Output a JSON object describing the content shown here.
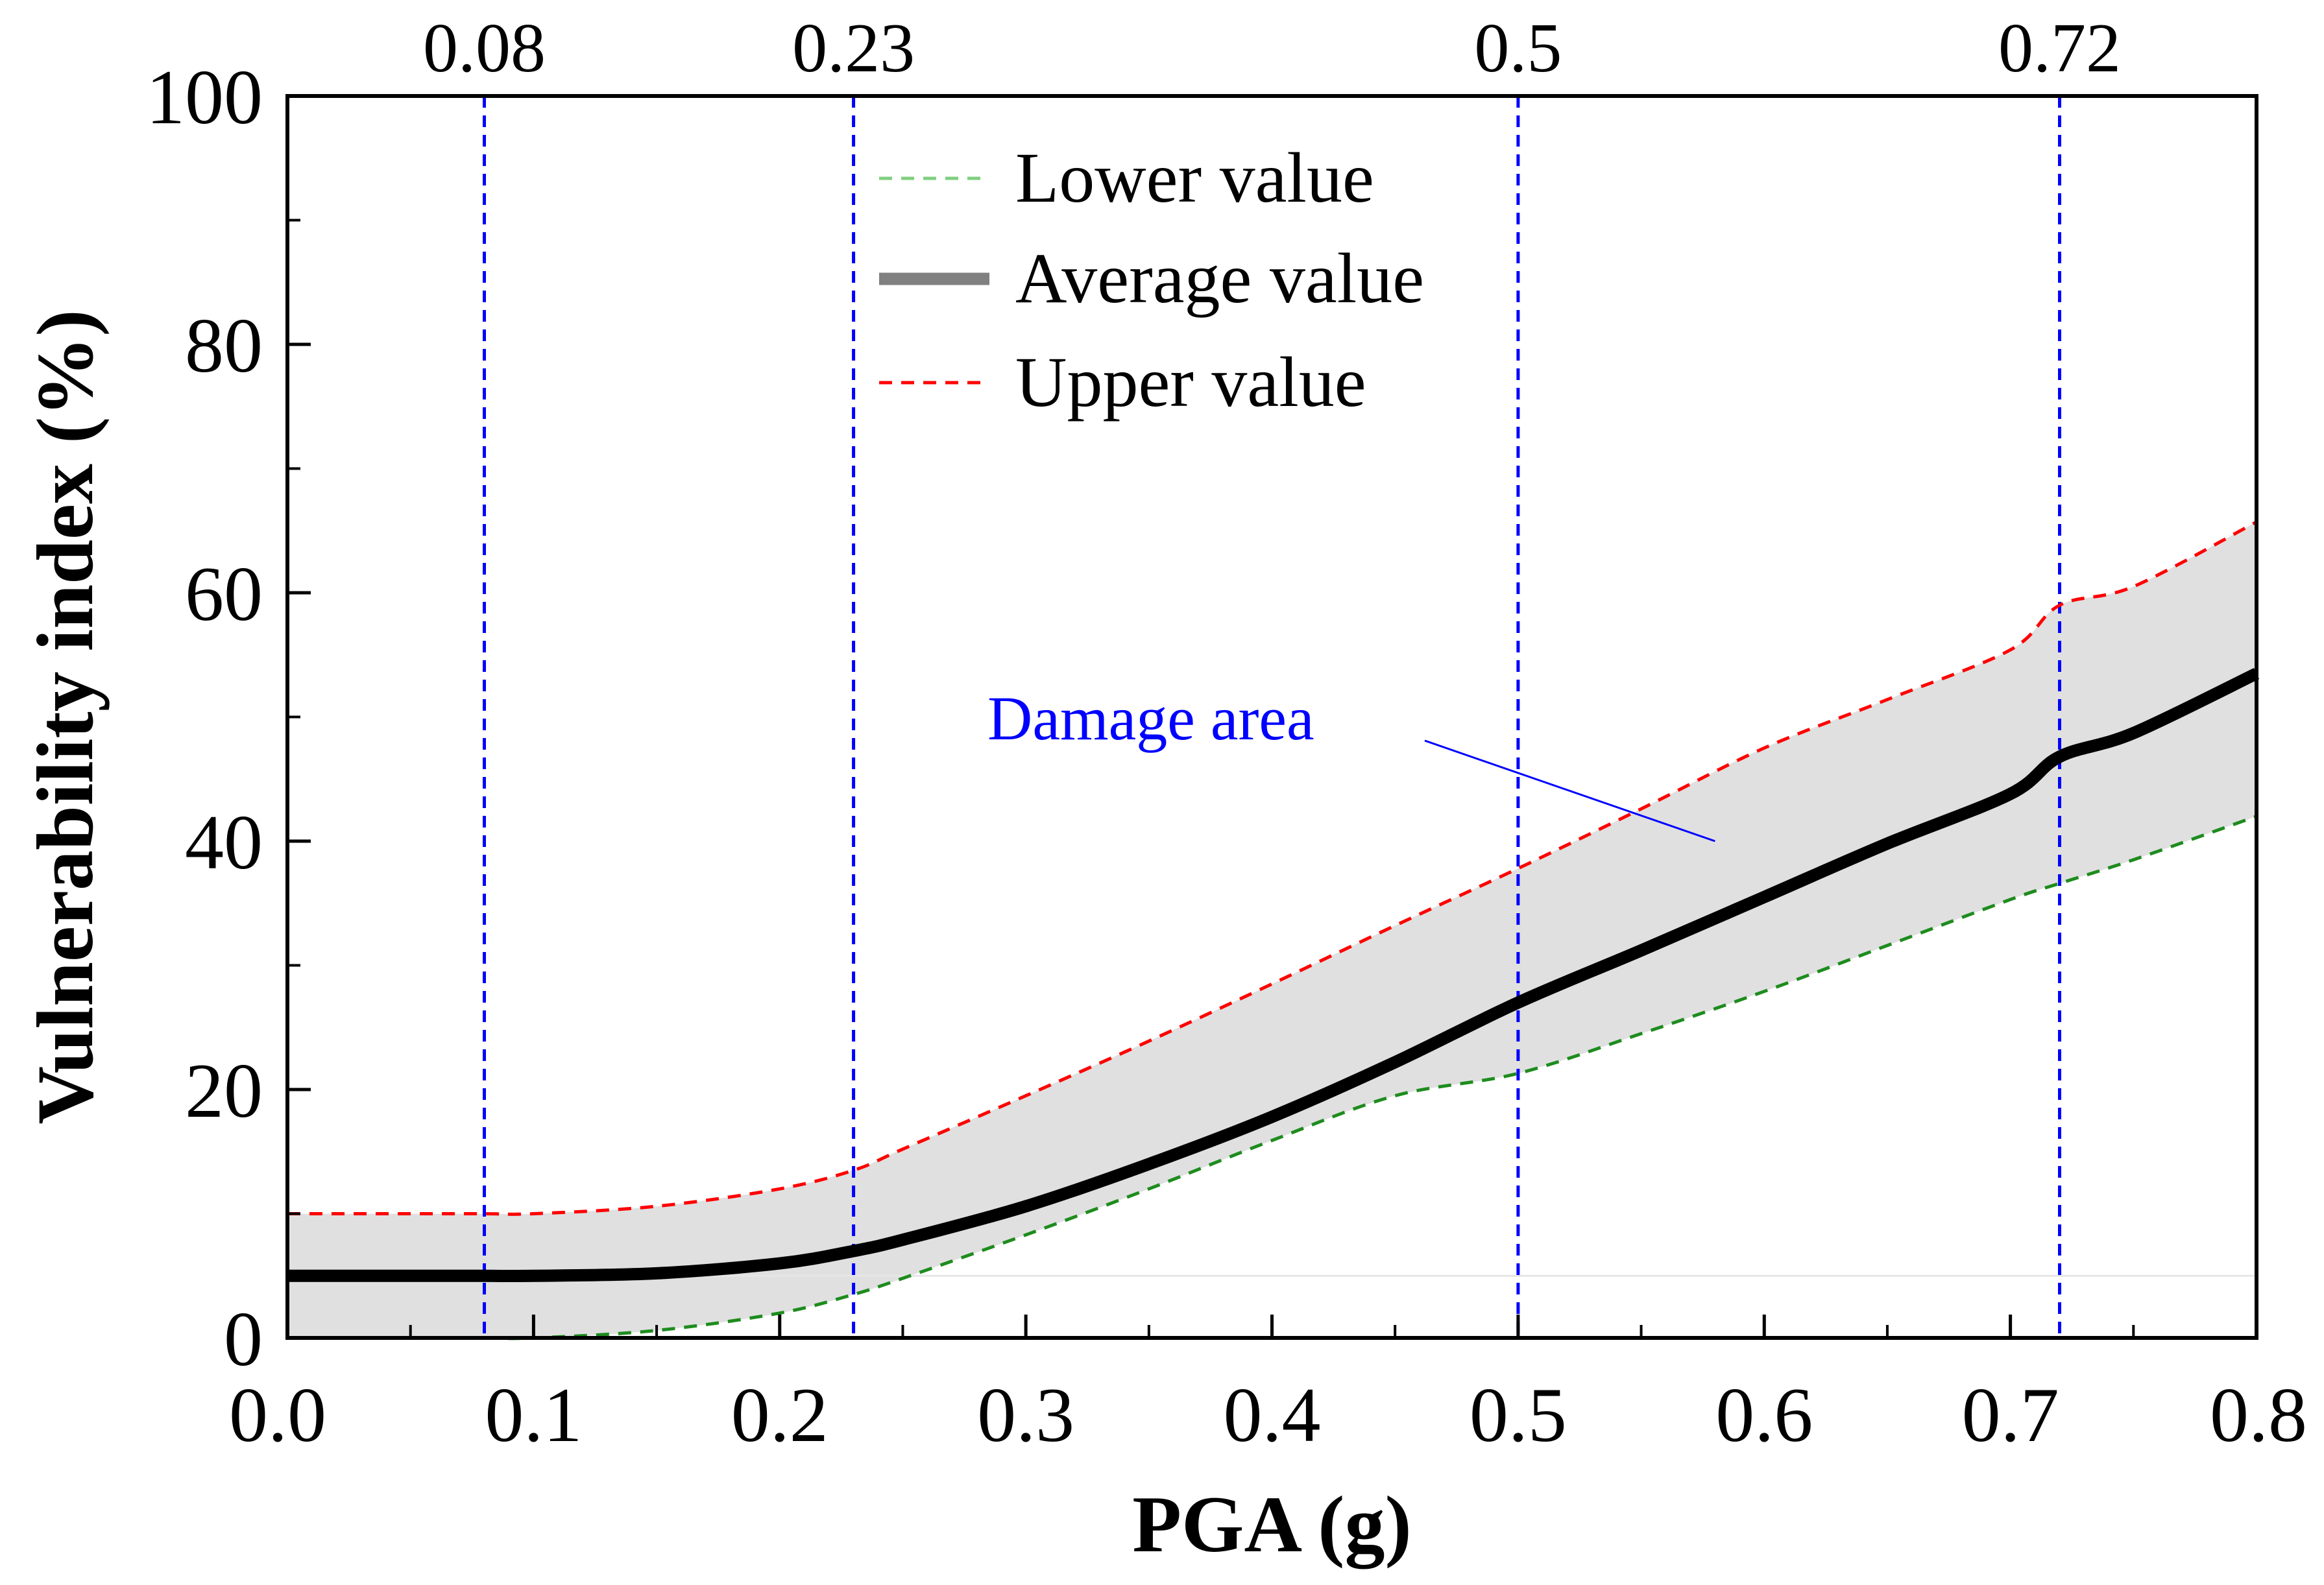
{
  "chart_data": {
    "type": "line",
    "title": "",
    "xlabel": "PGA (g)",
    "ylabel": "Vulnerability index (%)",
    "xlim": [
      0,
      0.8
    ],
    "ylim": [
      0,
      100
    ],
    "xticks": [
      "0.0",
      "0.1",
      "0.2",
      "0.3",
      "0.4",
      "0.5",
      "0.6",
      "0.7",
      "0.8"
    ],
    "yticks": [
      "0",
      "20",
      "40",
      "60",
      "80",
      "100"
    ],
    "grid": false,
    "legend_position": "top-center",
    "x": [
      0.0,
      0.05,
      0.08,
      0.1,
      0.15,
      0.2,
      0.23,
      0.25,
      0.3,
      0.35,
      0.4,
      0.45,
      0.5,
      0.55,
      0.6,
      0.65,
      0.7,
      0.72,
      0.75,
      0.8
    ],
    "series": [
      {
        "name": "Lower value",
        "style": "dashed",
        "color": "#1e8c1e",
        "legend_color": "#7fcf7f",
        "values": [
          0,
          0,
          0,
          0,
          0.6,
          2.0,
          3.5,
          4.8,
          8.3,
          12.0,
          15.9,
          19.5,
          21.3,
          24.5,
          27.9,
          31.6,
          35.3,
          36.6,
          38.5,
          42.0
        ]
      },
      {
        "name": "Average value",
        "style": "solid",
        "color": "#000000",
        "legend_color": "#808080",
        "values": [
          5.0,
          5.0,
          5.0,
          5.0,
          5.2,
          6.0,
          7.0,
          7.9,
          10.6,
          14.0,
          17.8,
          22.2,
          27.0,
          31.2,
          35.5,
          39.8,
          43.8,
          46.8,
          48.7,
          53.5
        ]
      },
      {
        "name": "Upper value",
        "style": "dashed",
        "color": "#ff0000",
        "legend_color": "#ff0000",
        "values": [
          10.0,
          10.0,
          10.0,
          10.0,
          10.6,
          12.0,
          13.5,
          15.2,
          19.5,
          23.9,
          28.5,
          33.2,
          37.8,
          42.6,
          47.5,
          51.4,
          55.4,
          59.0,
          60.5,
          65.7
        ]
      }
    ],
    "shaded_band": {
      "between": [
        "Lower value",
        "Upper value"
      ],
      "color": "#e0e0e0"
    },
    "threshold_lines": [
      {
        "x": 0.08,
        "label": "0.08"
      },
      {
        "x": 0.23,
        "label": "0.23"
      },
      {
        "x": 0.5,
        "label": "0.5"
      },
      {
        "x": 0.72,
        "label": "0.72"
      }
    ],
    "threshold_color": "#0000ff",
    "annotation": {
      "text": "Damage area",
      "color": "#0000ff",
      "points_to": {
        "x": 0.58,
        "y": 40.0
      }
    }
  }
}
